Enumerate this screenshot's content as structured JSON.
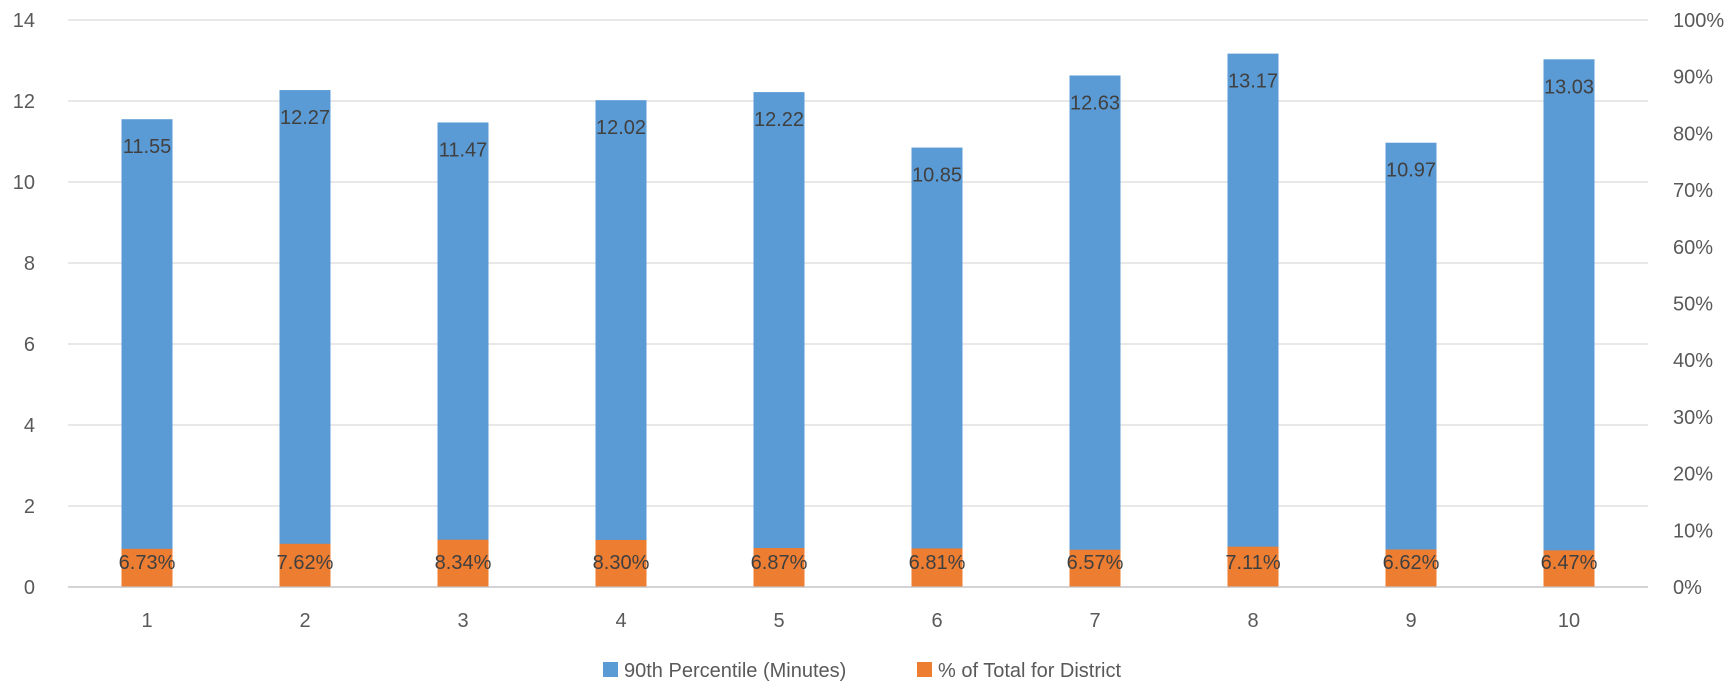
{
  "chart_data": {
    "type": "bar",
    "title": "",
    "xlabel": "",
    "ylabel": "",
    "categories": [
      "1",
      "2",
      "3",
      "4",
      "5",
      "6",
      "7",
      "8",
      "9",
      "10"
    ],
    "series": [
      {
        "name": "90th Percentile (Minutes)",
        "axis": "primary",
        "color": "#5b9bd5",
        "values": [
          11.55,
          12.27,
          11.47,
          12.02,
          12.22,
          10.85,
          12.63,
          13.17,
          10.97,
          13.03
        ],
        "labels": [
          "11.55",
          "12.27",
          "11.47",
          "12.02",
          "12.22",
          "10.85",
          "12.63",
          "13.17",
          "10.97",
          "13.03"
        ]
      },
      {
        "name": "% of Total for District",
        "axis": "secondary",
        "color": "#ed7d31",
        "values": [
          0.0673,
          0.0762,
          0.0834,
          0.083,
          0.0687,
          0.0681,
          0.0657,
          0.0711,
          0.0662,
          0.0647
        ],
        "labels": [
          "6.73%",
          "7.62%",
          "8.34%",
          "8.30%",
          "6.87%",
          "6.81%",
          "6.57%",
          "7.11%",
          "6.62%",
          "6.47%"
        ]
      }
    ],
    "y_left": {
      "ylim": [
        0,
        14
      ],
      "ticks": [
        0,
        2,
        4,
        6,
        8,
        10,
        12,
        14
      ],
      "tick_labels": [
        "0",
        "2",
        "4",
        "6",
        "8",
        "10",
        "12",
        "14"
      ]
    },
    "y_right": {
      "ylim": [
        0,
        1
      ],
      "ticks": [
        0,
        0.1,
        0.2,
        0.3,
        0.4,
        0.5,
        0.6,
        0.7,
        0.8,
        0.9,
        1.0
      ],
      "tick_labels": [
        "0%",
        "10%",
        "20%",
        "30%",
        "40%",
        "50%",
        "60%",
        "70%",
        "80%",
        "90%",
        "100%"
      ]
    },
    "grid": true,
    "legend_position": "bottom"
  }
}
